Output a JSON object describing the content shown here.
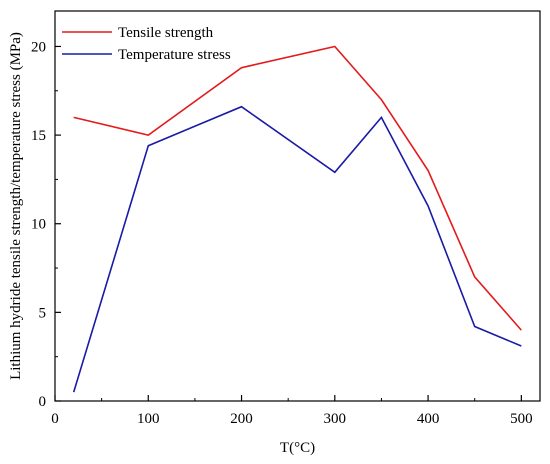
{
  "chart_data": {
    "type": "line",
    "title": "",
    "xlabel": "T(°C)",
    "ylabel": "Lithium hydride tensile strength/temperature stress (MPa)",
    "xlim": [
      0,
      520
    ],
    "ylim": [
      0,
      22
    ],
    "xticks": [
      0,
      100,
      200,
      300,
      400,
      500
    ],
    "yticks": [
      0,
      5,
      10,
      15,
      20
    ],
    "grid": false,
    "legend_position": "top-left",
    "series": [
      {
        "name": "Tensile strength",
        "color": "#e31a1c",
        "points": [
          [
            20,
            16.0
          ],
          [
            100,
            15.0
          ],
          [
            200,
            18.8
          ],
          [
            300,
            20.0
          ],
          [
            350,
            17.0
          ],
          [
            400,
            13.0
          ],
          [
            450,
            7.0
          ],
          [
            500,
            4.0
          ]
        ]
      },
      {
        "name": "Temperature stress",
        "color": "#1a1aa6",
        "points": [
          [
            20,
            0.5
          ],
          [
            100,
            14.4
          ],
          [
            200,
            16.6
          ],
          [
            300,
            12.9
          ],
          [
            350,
            16.0
          ],
          [
            400,
            11.0
          ],
          [
            450,
            4.2
          ],
          [
            500,
            3.1
          ]
        ]
      }
    ]
  }
}
